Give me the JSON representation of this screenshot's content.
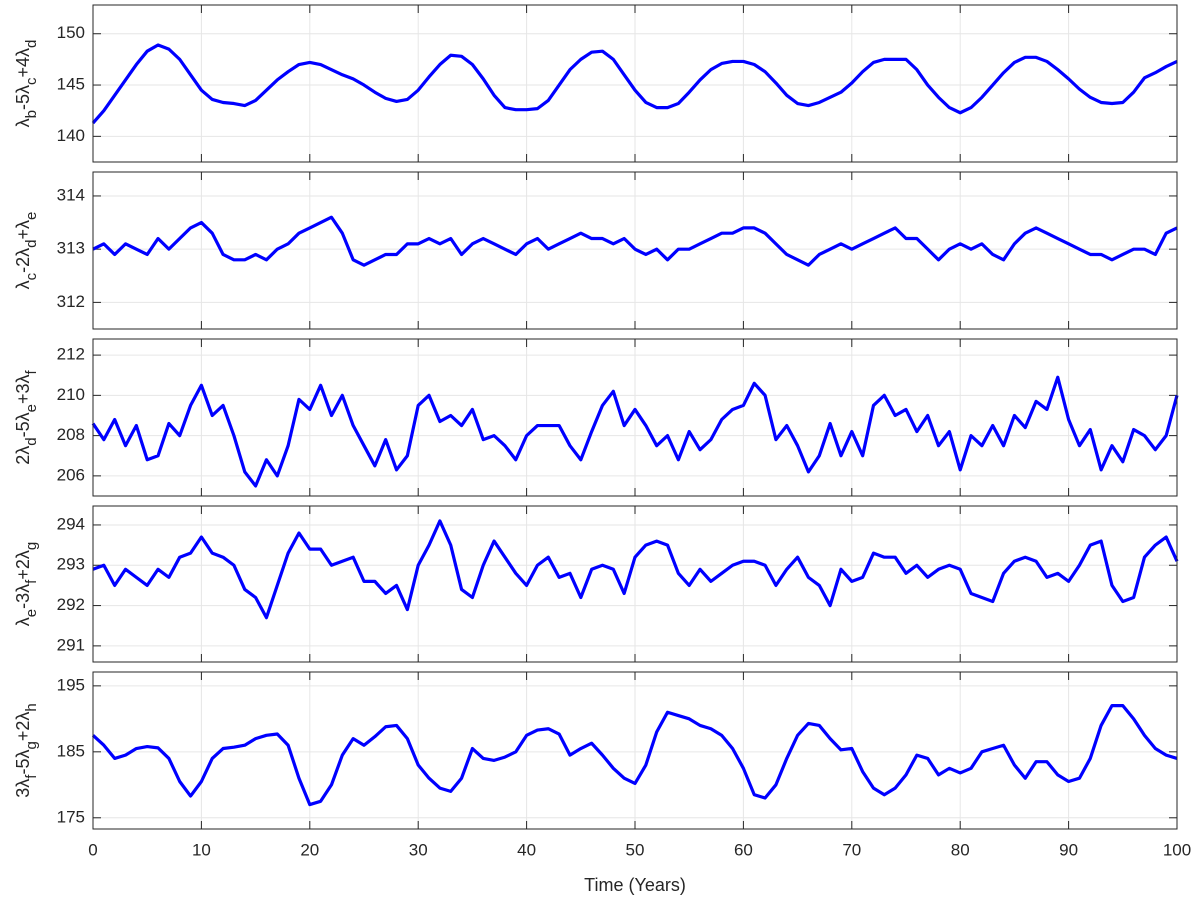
{
  "chart_data": [
    {
      "type": "line",
      "ylabel": [
        "λ",
        "b",
        "-5λ",
        "c",
        "+4λ",
        "d"
      ],
      "xlim": [
        0,
        100
      ],
      "xticks": [
        0,
        10,
        20,
        30,
        40,
        50,
        60,
        70,
        80,
        90,
        100
      ],
      "ylim": [
        137.5,
        152.8
      ],
      "yticks": [
        140,
        145,
        150
      ],
      "grid": true,
      "x": [
        0,
        1,
        2,
        3,
        4,
        5,
        6,
        7,
        8,
        9,
        10,
        11,
        12,
        13,
        14,
        15,
        16,
        17,
        18,
        19,
        20,
        21,
        22,
        23,
        24,
        25,
        26,
        27,
        28,
        29,
        30,
        31,
        32,
        33,
        34,
        35,
        36,
        37,
        38,
        39,
        40,
        41,
        42,
        43,
        44,
        45,
        46,
        47,
        48,
        49,
        50,
        51,
        52,
        53,
        54,
        55,
        56,
        57,
        58,
        59,
        60,
        61,
        62,
        63,
        64,
        65,
        66,
        67,
        68,
        69,
        70,
        71,
        72,
        73,
        74,
        75,
        76,
        77,
        78,
        79,
        80,
        81,
        82,
        83,
        84,
        85,
        86,
        87,
        88,
        89,
        90,
        91,
        92,
        93,
        94,
        95,
        96,
        97,
        98,
        99,
        100
      ],
      "series": [
        {
          "color": "#0000ff",
          "values": [
            141.3,
            142.5,
            144,
            145.5,
            147,
            148.3,
            148.9,
            148.5,
            147.5,
            146,
            144.5,
            143.6,
            143.3,
            143.2,
            143,
            143.5,
            144.5,
            145.5,
            146.3,
            147,
            147.2,
            147,
            146.5,
            146,
            145.6,
            145,
            144.3,
            143.7,
            143.4,
            143.6,
            144.5,
            145.8,
            147,
            147.9,
            147.8,
            147,
            145.6,
            144,
            142.8,
            142.6,
            142.6,
            142.7,
            143.5,
            145,
            146.5,
            147.5,
            148.2,
            148.3,
            147.5,
            146,
            144.5,
            143.3,
            142.8,
            142.8,
            143.2,
            144.3,
            145.5,
            146.5,
            147.1,
            147.3,
            147.3,
            147,
            146.3,
            145.2,
            144,
            143.2,
            143,
            143.3,
            143.8,
            144.3,
            145.2,
            146.3,
            147.2,
            147.5,
            147.5,
            147.5,
            146.5,
            145,
            143.8,
            142.8,
            142.3,
            142.8,
            143.8,
            145,
            146.2,
            147.2,
            147.7,
            147.7,
            147.3,
            146.5,
            145.6,
            144.6,
            143.8,
            143.3,
            143.2,
            143.3,
            144.3,
            145.7,
            146.2,
            146.8,
            147.3
          ]
        }
      ]
    },
    {
      "type": "line",
      "ylabel": [
        "λ",
        "c",
        "-2λ",
        "d",
        "+λ",
        "e"
      ],
      "xlim": [
        0,
        100
      ],
      "xticks": [
        0,
        10,
        20,
        30,
        40,
        50,
        60,
        70,
        80,
        90,
        100
      ],
      "ylim": [
        311.5,
        314.45
      ],
      "yticks": [
        312,
        313,
        314
      ],
      "grid": true,
      "x": [
        0,
        1,
        2,
        3,
        4,
        5,
        6,
        7,
        8,
        9,
        10,
        11,
        12,
        13,
        14,
        15,
        16,
        17,
        18,
        19,
        20,
        21,
        22,
        23,
        24,
        25,
        26,
        27,
        28,
        29,
        30,
        31,
        32,
        33,
        34,
        35,
        36,
        37,
        38,
        39,
        40,
        41,
        42,
        43,
        44,
        45,
        46,
        47,
        48,
        49,
        50,
        51,
        52,
        53,
        54,
        55,
        56,
        57,
        58,
        59,
        60,
        61,
        62,
        63,
        64,
        65,
        66,
        67,
        68,
        69,
        70,
        71,
        72,
        73,
        74,
        75,
        76,
        77,
        78,
        79,
        80,
        81,
        82,
        83,
        84,
        85,
        86,
        87,
        88,
        89,
        90,
        91,
        92,
        93,
        94,
        95,
        96,
        97,
        98,
        99,
        100
      ],
      "series": [
        {
          "color": "#0000ff",
          "values": [
            313,
            313.1,
            312.9,
            313.1,
            313,
            312.9,
            313.2,
            313,
            313.2,
            313.4,
            313.5,
            313.3,
            312.9,
            312.8,
            312.8,
            312.9,
            312.8,
            313,
            313.1,
            313.3,
            313.4,
            313.5,
            313.6,
            313.3,
            312.8,
            312.7,
            312.8,
            312.9,
            312.9,
            313.1,
            313.1,
            313.2,
            313.1,
            313.2,
            312.9,
            313.1,
            313.2,
            313.1,
            313,
            312.9,
            313.1,
            313.2,
            313,
            313.1,
            313.2,
            313.3,
            313.2,
            313.2,
            313.1,
            313.2,
            313,
            312.9,
            313,
            312.8,
            313,
            313,
            313.1,
            313.2,
            313.3,
            313.3,
            313.4,
            313.4,
            313.3,
            313.1,
            312.9,
            312.8,
            312.7,
            312.9,
            313,
            313.1,
            313,
            313.1,
            313.2,
            313.3,
            313.4,
            313.2,
            313.2,
            313,
            312.8,
            313,
            313.1,
            313,
            313.1,
            312.9,
            312.8,
            313.1,
            313.3,
            313.4,
            313.3,
            313.2,
            313.1,
            313,
            312.9,
            312.9,
            312.8,
            312.9,
            313,
            313,
            312.9,
            313.3,
            313.4
          ]
        }
      ]
    },
    {
      "type": "line",
      "ylabel": [
        "2λ",
        "d",
        "-5λ",
        "e",
        "+3λ",
        "f"
      ],
      "xlim": [
        0,
        100
      ],
      "xticks": [
        0,
        10,
        20,
        30,
        40,
        50,
        60,
        70,
        80,
        90,
        100
      ],
      "ylim": [
        205,
        212.8
      ],
      "yticks": [
        206,
        208,
        210,
        212
      ],
      "grid": true,
      "x": [
        0,
        1,
        2,
        3,
        4,
        5,
        6,
        7,
        8,
        9,
        10,
        11,
        12,
        13,
        14,
        15,
        16,
        17,
        18,
        19,
        20,
        21,
        22,
        23,
        24,
        25,
        26,
        27,
        28,
        29,
        30,
        31,
        32,
        33,
        34,
        35,
        36,
        37,
        38,
        39,
        40,
        41,
        42,
        43,
        44,
        45,
        46,
        47,
        48,
        49,
        50,
        51,
        52,
        53,
        54,
        55,
        56,
        57,
        58,
        59,
        60,
        61,
        62,
        63,
        64,
        65,
        66,
        67,
        68,
        69,
        70,
        71,
        72,
        73,
        74,
        75,
        76,
        77,
        78,
        79,
        80,
        81,
        82,
        83,
        84,
        85,
        86,
        87,
        88,
        89,
        90,
        91,
        92,
        93,
        94,
        95,
        96,
        97,
        98,
        99,
        100
      ],
      "series": [
        {
          "color": "#0000ff",
          "values": [
            208.6,
            207.8,
            208.8,
            207.5,
            208.5,
            206.8,
            207,
            208.6,
            208,
            209.5,
            210.5,
            209,
            209.5,
            208,
            206.2,
            205.5,
            206.8,
            206,
            207.5,
            209.8,
            209.3,
            210.5,
            209,
            210,
            208.5,
            207.5,
            206.5,
            207.8,
            206.3,
            207,
            209.5,
            210,
            208.7,
            209,
            208.5,
            209.3,
            207.8,
            208,
            207.5,
            206.8,
            208,
            208.5,
            208.5,
            208.5,
            207.5,
            206.8,
            208.2,
            209.5,
            210.2,
            208.5,
            209.3,
            208.5,
            207.5,
            208,
            206.8,
            208.2,
            207.3,
            207.8,
            208.8,
            209.3,
            209.5,
            210.6,
            210,
            207.8,
            208.5,
            207.5,
            206.2,
            207,
            208.6,
            207,
            208.2,
            207,
            209.5,
            210,
            209,
            209.3,
            208.2,
            209,
            207.5,
            208.2,
            206.3,
            208,
            207.5,
            208.5,
            207.5,
            209,
            208.4,
            209.7,
            209.3,
            210.9,
            208.8,
            207.5,
            208.3,
            206.3,
            207.5,
            206.7,
            208.3,
            208,
            207.3,
            208,
            210
          ]
        }
      ]
    },
    {
      "type": "line",
      "ylabel": [
        "λ",
        "e",
        "-3λ",
        "f",
        "+2λ",
        "g"
      ],
      "xlim": [
        0,
        100
      ],
      "xticks": [
        0,
        10,
        20,
        30,
        40,
        50,
        60,
        70,
        80,
        90,
        100
      ],
      "ylim": [
        290.6,
        294.47
      ],
      "yticks": [
        291,
        292,
        293,
        294
      ],
      "grid": true,
      "x": [
        0,
        1,
        2,
        3,
        4,
        5,
        6,
        7,
        8,
        9,
        10,
        11,
        12,
        13,
        14,
        15,
        16,
        17,
        18,
        19,
        20,
        21,
        22,
        23,
        24,
        25,
        26,
        27,
        28,
        29,
        30,
        31,
        32,
        33,
        34,
        35,
        36,
        37,
        38,
        39,
        40,
        41,
        42,
        43,
        44,
        45,
        46,
        47,
        48,
        49,
        50,
        51,
        52,
        53,
        54,
        55,
        56,
        57,
        58,
        59,
        60,
        61,
        62,
        63,
        64,
        65,
        66,
        67,
        68,
        69,
        70,
        71,
        72,
        73,
        74,
        75,
        76,
        77,
        78,
        79,
        80,
        81,
        82,
        83,
        84,
        85,
        86,
        87,
        88,
        89,
        90,
        91,
        92,
        93,
        94,
        95,
        96,
        97,
        98,
        99,
        100
      ],
      "series": [
        {
          "color": "#0000ff",
          "values": [
            292.9,
            293,
            292.5,
            292.9,
            292.7,
            292.5,
            292.9,
            292.7,
            293.2,
            293.3,
            293.7,
            293.3,
            293.2,
            293,
            292.4,
            292.2,
            291.7,
            292.5,
            293.3,
            293.8,
            293.4,
            293.4,
            293,
            293.1,
            293.2,
            292.6,
            292.6,
            292.3,
            292.5,
            291.9,
            293,
            293.5,
            294.1,
            293.5,
            292.4,
            292.2,
            293,
            293.6,
            293.2,
            292.8,
            292.5,
            293,
            293.2,
            292.7,
            292.8,
            292.2,
            292.9,
            293,
            292.9,
            292.3,
            293.2,
            293.5,
            293.6,
            293.5,
            292.8,
            292.5,
            292.9,
            292.6,
            292.8,
            293,
            293.1,
            293.1,
            293,
            292.5,
            292.9,
            293.2,
            292.7,
            292.5,
            292,
            292.9,
            292.6,
            292.7,
            293.3,
            293.2,
            293.2,
            292.8,
            293,
            292.7,
            292.9,
            293,
            292.9,
            292.3,
            292.2,
            292.1,
            292.8,
            293.1,
            293.2,
            293.1,
            292.7,
            292.8,
            292.6,
            293,
            293.5,
            293.6,
            292.5,
            292.1,
            292.2,
            293.2,
            293.5,
            293.7,
            293.1
          ]
        }
      ]
    },
    {
      "type": "line",
      "ylabel": [
        "3λ",
        "f",
        "-5λ",
        "g",
        "+2λ",
        "h"
      ],
      "xlabel": "Time (Years)",
      "xlim": [
        0,
        100
      ],
      "xticks": [
        0,
        10,
        20,
        30,
        40,
        50,
        60,
        70,
        80,
        90,
        100
      ],
      "ylim": [
        173.3,
        197.1
      ],
      "yticks": [
        175,
        185,
        195
      ],
      "grid": true,
      "x": [
        0,
        1,
        2,
        3,
        4,
        5,
        6,
        7,
        8,
        9,
        10,
        11,
        12,
        13,
        14,
        15,
        16,
        17,
        18,
        19,
        20,
        21,
        22,
        23,
        24,
        25,
        26,
        27,
        28,
        29,
        30,
        31,
        32,
        33,
        34,
        35,
        36,
        37,
        38,
        39,
        40,
        41,
        42,
        43,
        44,
        45,
        46,
        47,
        48,
        49,
        50,
        51,
        52,
        53,
        54,
        55,
        56,
        57,
        58,
        59,
        60,
        61,
        62,
        63,
        64,
        65,
        66,
        67,
        68,
        69,
        70,
        71,
        72,
        73,
        74,
        75,
        76,
        77,
        78,
        79,
        80,
        81,
        82,
        83,
        84,
        85,
        86,
        87,
        88,
        89,
        90,
        91,
        92,
        93,
        94,
        95,
        96,
        97,
        98,
        99,
        100
      ],
      "series": [
        {
          "color": "#0000ff",
          "values": [
            187.5,
            186,
            184,
            184.5,
            185.5,
            185.8,
            185.6,
            184,
            180.5,
            178.3,
            180.5,
            184,
            185.5,
            185.7,
            186,
            187,
            187.5,
            187.7,
            186,
            181,
            177,
            177.5,
            180,
            184.5,
            187,
            186,
            187.3,
            188.8,
            189,
            187,
            183,
            181,
            179.5,
            179,
            181,
            185.5,
            184,
            183.7,
            184.2,
            185,
            187.5,
            188.3,
            188.5,
            187.7,
            184.5,
            185.5,
            186.3,
            184.5,
            182.5,
            181,
            180.2,
            183,
            188,
            191,
            190.5,
            190,
            189,
            188.5,
            187.5,
            185.5,
            182.5,
            178.5,
            178,
            180,
            184,
            187.5,
            189.3,
            189,
            187,
            185.3,
            185.5,
            182,
            179.5,
            178.5,
            179.5,
            181.5,
            184.5,
            184,
            181.5,
            182.5,
            181.8,
            182.5,
            185,
            185.5,
            186,
            183,
            181,
            183.5,
            183.5,
            181.5,
            180.5,
            181,
            184,
            189,
            192,
            192,
            190,
            187.5,
            185.5,
            184.5,
            184
          ]
        }
      ]
    }
  ]
}
